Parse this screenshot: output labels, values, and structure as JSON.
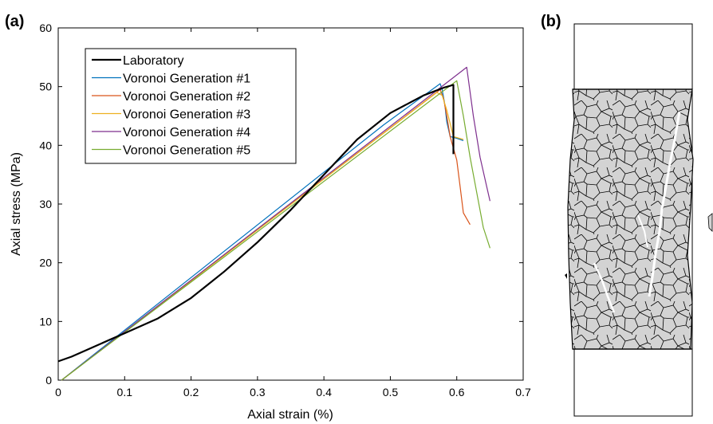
{
  "panel_a_label": "(a)",
  "panel_b_label": "(b)",
  "chart_data": {
    "type": "line",
    "title": "",
    "xlabel": "Axial strain (%)",
    "ylabel": "Axial stress (MPa)",
    "xlim": [
      0,
      0.7
    ],
    "ylim": [
      0,
      60
    ],
    "xticks": [
      "0",
      "0.1",
      "0.2",
      "0.3",
      "0.4",
      "0.5",
      "0.6",
      "0.7"
    ],
    "yticks": [
      "0",
      "10",
      "20",
      "30",
      "40",
      "50",
      "60"
    ],
    "grid": false,
    "legend_position": "top-left",
    "series": [
      {
        "name": "Laboratory",
        "color": "#000000",
        "x": [
          0,
          0.02,
          0.05,
          0.08,
          0.1,
          0.15,
          0.2,
          0.25,
          0.3,
          0.35,
          0.4,
          0.45,
          0.5,
          0.55,
          0.58,
          0.595,
          0.595
        ],
        "y": [
          3.2,
          4,
          5.5,
          7,
          8,
          10.5,
          14,
          18.5,
          23.5,
          29,
          35,
          41,
          45.5,
          48.5,
          49.8,
          50.3,
          38.5
        ]
      },
      {
        "name": "Voronoi Generation #1",
        "color": "#0072BD",
        "x": [
          0.005,
          0.49,
          0.575,
          0.578,
          0.582,
          0.585,
          0.59,
          0.6,
          0.61
        ],
        "y": [
          0,
          43.5,
          50.5,
          49.5,
          47,
          44,
          41.5,
          41.2,
          40.8
        ]
      },
      {
        "name": "Voronoi Generation #2",
        "color": "#D95319",
        "x": [
          0.005,
          0.575,
          0.58,
          0.585,
          0.59,
          0.6,
          0.605,
          0.61,
          0.62
        ],
        "y": [
          0,
          49.5,
          48,
          45,
          41.5,
          37.5,
          33,
          28.5,
          26.5
        ]
      },
      {
        "name": "Voronoi Generation #3",
        "color": "#EDB120",
        "x": [
          0.005,
          0.57,
          0.578,
          0.585,
          0.595,
          0.61
        ],
        "y": [
          0,
          49,
          48.5,
          46,
          41.5,
          41
        ]
      },
      {
        "name": "Voronoi Generation #4",
        "color": "#7E2F8E",
        "x": [
          0.005,
          0.615,
          0.625,
          0.635,
          0.645,
          0.65
        ],
        "y": [
          0,
          53.3,
          45,
          38,
          33,
          30.5
        ]
      },
      {
        "name": "Voronoi Generation #5",
        "color": "#77AC30",
        "x": [
          0.005,
          0.6,
          0.61,
          0.62,
          0.63,
          0.64,
          0.65
        ],
        "y": [
          0,
          51,
          45,
          38,
          32,
          26,
          22.5
        ]
      }
    ]
  },
  "specimen": {
    "cell_fill": "#d3d3d3",
    "edge_color": "#000000"
  }
}
